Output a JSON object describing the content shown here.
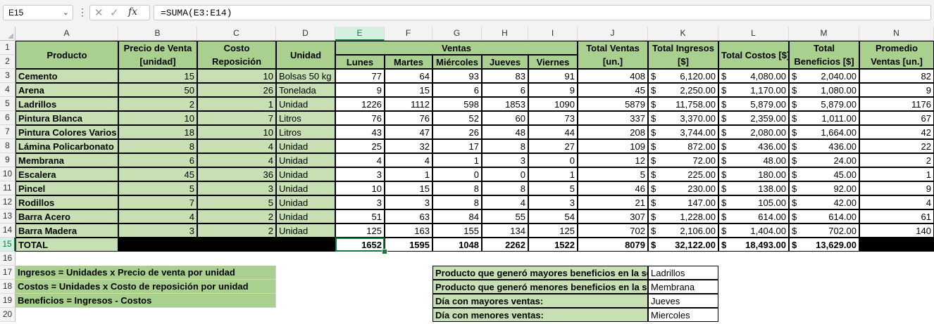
{
  "formula_bar": {
    "name_box": "E15",
    "name_box_arrow": "⌄",
    "dots": "⋮",
    "cancel": "✕",
    "enter": "✓",
    "fx": "fx",
    "formula": "=SUMA(E3:E14)"
  },
  "columns": [
    "A",
    "B",
    "C",
    "D",
    "E",
    "F",
    "G",
    "H",
    "I",
    "J",
    "K",
    "L",
    "M",
    "N"
  ],
  "rows": [
    "1",
    "2",
    "3",
    "4",
    "5",
    "6",
    "7",
    "8",
    "9",
    "10",
    "11",
    "12",
    "13",
    "14",
    "15",
    "16",
    "17",
    "18",
    "19",
    "20"
  ],
  "headers": {
    "producto": "Producto",
    "precio_venta": "Precio de Venta",
    "precio_venta_unit": "[unidad]",
    "costo_reposicion": "Costo Reposición",
    "costo_reposicion_unit": "[unidad]",
    "unidad": "Unidad",
    "ventas": "Ventas",
    "days": [
      "Lunes",
      "Martes",
      "Miércoles",
      "Jueves",
      "Viernes"
    ],
    "total_ventas": "Total Ventas",
    "total_ventas_unit": "[un.]",
    "total_ingresos": "Total Ingresos",
    "total_ingresos_unit": "[$]",
    "total_costos": "Total Costos [$]",
    "total_beneficios": "Total",
    "total_beneficios_2": "Beneficios [$]",
    "promedio_ventas": "Promedio",
    "promedio_ventas_2": "Ventas [un.]"
  },
  "currency": "$",
  "products": [
    {
      "name": "Cemento",
      "precio": "15",
      "costo": "10",
      "unidad": "Bolsas 50 kg",
      "ventas": [
        "77",
        "64",
        "93",
        "83",
        "91"
      ],
      "total": "408",
      "ingresos": "6,120.00",
      "costos": "4,080.00",
      "beneficios": "2,040.00",
      "promedio": "82"
    },
    {
      "name": "Arena",
      "precio": "50",
      "costo": "26",
      "unidad": "Tonelada",
      "ventas": [
        "9",
        "15",
        "6",
        "6",
        "9"
      ],
      "total": "45",
      "ingresos": "2,250.00",
      "costos": "1,170.00",
      "beneficios": "1,080.00",
      "promedio": "9"
    },
    {
      "name": "Ladrillos",
      "precio": "2",
      "costo": "1",
      "unidad": "Unidad",
      "ventas": [
        "1226",
        "1112",
        "598",
        "1853",
        "1090"
      ],
      "total": "5879",
      "ingresos": "11,758.00",
      "costos": "5,879.00",
      "beneficios": "5,879.00",
      "promedio": "1176"
    },
    {
      "name": "Pintura Blanca",
      "precio": "10",
      "costo": "7",
      "unidad": "Litros",
      "ventas": [
        "76",
        "76",
        "52",
        "60",
        "73"
      ],
      "total": "337",
      "ingresos": "3,370.00",
      "costos": "2,359.00",
      "beneficios": "1,011.00",
      "promedio": "67"
    },
    {
      "name": "Pintura Colores Varios",
      "precio": "18",
      "costo": "10",
      "unidad": "Litros",
      "ventas": [
        "43",
        "47",
        "26",
        "48",
        "44"
      ],
      "total": "208",
      "ingresos": "3,744.00",
      "costos": "2,080.00",
      "beneficios": "1,664.00",
      "promedio": "42"
    },
    {
      "name": "Lámina Policarbonato",
      "precio": "8",
      "costo": "4",
      "unidad": "Unidad",
      "ventas": [
        "25",
        "32",
        "17",
        "8",
        "27"
      ],
      "total": "109",
      "ingresos": "872.00",
      "costos": "436.00",
      "beneficios": "436.00",
      "promedio": "22"
    },
    {
      "name": "Membrana",
      "precio": "6",
      "costo": "4",
      "unidad": "Unidad",
      "ventas": [
        "4",
        "4",
        "1",
        "3",
        "0"
      ],
      "total": "12",
      "ingresos": "72.00",
      "costos": "48.00",
      "beneficios": "24.00",
      "promedio": "2"
    },
    {
      "name": "Escalera",
      "precio": "45",
      "costo": "36",
      "unidad": "Unidad",
      "ventas": [
        "3",
        "1",
        "0",
        "0",
        "1"
      ],
      "total": "5",
      "ingresos": "225.00",
      "costos": "180.00",
      "beneficios": "45.00",
      "promedio": "1"
    },
    {
      "name": "Pincel",
      "precio": "5",
      "costo": "3",
      "unidad": "Unidad",
      "ventas": [
        "10",
        "15",
        "8",
        "8",
        "5"
      ],
      "total": "46",
      "ingresos": "230.00",
      "costos": "138.00",
      "beneficios": "92.00",
      "promedio": "9"
    },
    {
      "name": "Rodillos",
      "precio": "7",
      "costo": "5",
      "unidad": "Unidad",
      "ventas": [
        "3",
        "3",
        "8",
        "4",
        "3"
      ],
      "total": "21",
      "ingresos": "147.00",
      "costos": "105.00",
      "beneficios": "42.00",
      "promedio": "4"
    },
    {
      "name": "Barra Acero",
      "precio": "4",
      "costo": "2",
      "unidad": "Unidad",
      "ventas": [
        "51",
        "63",
        "84",
        "55",
        "54"
      ],
      "total": "307",
      "ingresos": "1,228.00",
      "costos": "614.00",
      "beneficios": "614.00",
      "promedio": "61"
    },
    {
      "name": "Barra Madera",
      "precio": "3",
      "costo": "2",
      "unidad": "Unidad",
      "ventas": [
        "125",
        "163",
        "155",
        "134",
        "125"
      ],
      "total": "702",
      "ingresos": "2,106.00",
      "costos": "1,404.00",
      "beneficios": "702.00",
      "promedio": "140"
    }
  ],
  "totals": {
    "label": "TOTAL",
    "ventas": [
      "1652",
      "1595",
      "1048",
      "2262",
      "1522"
    ],
    "total": "8079",
    "ingresos": "32,122.00",
    "costos": "18,493.00",
    "beneficios": "13,629.00"
  },
  "notes": [
    "Ingresos = Unidades x Precio de venta por unidad",
    "Costos = Unidades x Costo de reposición por unidad",
    "Beneficios = Ingresos - Costos"
  ],
  "summary": [
    {
      "label": "Producto que generó mayores beneficios en la semana:",
      "value": "Ladrillos"
    },
    {
      "label": "Producto que generó menores beneficios en la semana:",
      "value": "Membrana"
    },
    {
      "label": "Día con mayores ventas:",
      "value": "Jueves"
    },
    {
      "label": "Día con menores ventas:",
      "value": "Miercoles"
    }
  ],
  "colors": {
    "header_green": "#a9d08e",
    "light_green": "#c6e0b4",
    "selection": "#107c41"
  }
}
